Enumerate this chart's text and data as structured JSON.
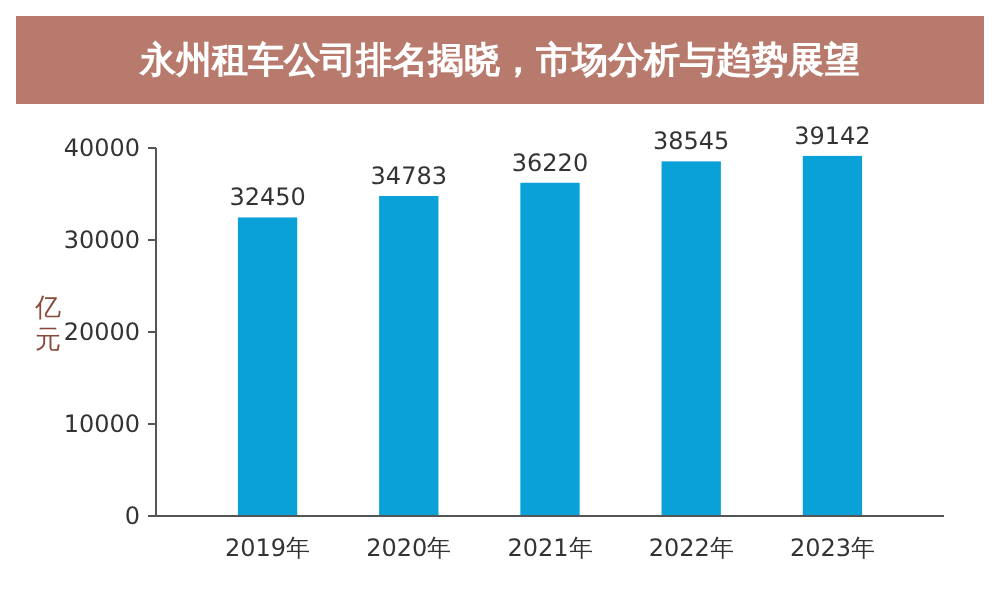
{
  "chart_data": {
    "type": "bar",
    "title": "永州租车公司排名揭晓，市场分析与趋势展望",
    "ylabel": "亿元",
    "categories": [
      "2019年",
      "2020年",
      "2021年",
      "2022年",
      "2023年"
    ],
    "values": [
      32450,
      34783,
      36220,
      38545,
      39142
    ],
    "color": "#0aa0d8",
    "data_labels": true,
    "ylim": [
      0,
      40000
    ],
    "yticks": [
      0,
      10000,
      20000,
      30000,
      40000
    ],
    "grid": false
  }
}
